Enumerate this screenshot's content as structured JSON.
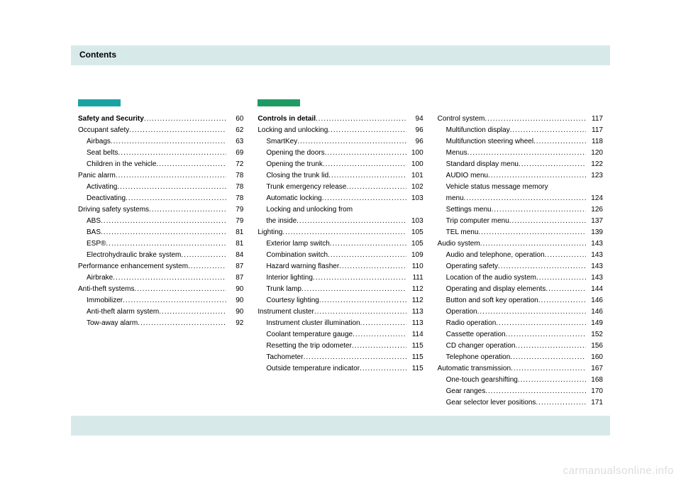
{
  "page": {
    "title": "Contents",
    "watermark": "carmanualsonline.info",
    "header_bg": "#d8e9ea",
    "footer_bg": "#d8e9ea",
    "text_color": "#000000",
    "accent_colors": [
      "#1aa3a3",
      "#1e9b63"
    ]
  },
  "columns": [
    {
      "accent": "#1aa3a3",
      "entries": [
        {
          "label": "Safety and Security",
          "page": "60",
          "bold": true,
          "indent": false
        },
        {
          "label": "Occupant safety",
          "page": "62",
          "bold": false,
          "indent": false
        },
        {
          "label": "Airbags",
          "page": "63",
          "bold": false,
          "indent": true
        },
        {
          "label": "Seat belts",
          "page": "69",
          "bold": false,
          "indent": true
        },
        {
          "label": "Children in the vehicle",
          "page": "72",
          "bold": false,
          "indent": true
        },
        {
          "label": "Panic alarm",
          "page": "78",
          "bold": false,
          "indent": false
        },
        {
          "label": "Activating",
          "page": "78",
          "bold": false,
          "indent": true
        },
        {
          "label": "Deactivating",
          "page": "78",
          "bold": false,
          "indent": true
        },
        {
          "label": "Driving safety systems",
          "page": "79",
          "bold": false,
          "indent": false
        },
        {
          "label": "ABS",
          "page": "79",
          "bold": false,
          "indent": true
        },
        {
          "label": "BAS",
          "page": "81",
          "bold": false,
          "indent": true
        },
        {
          "label": "ESP®",
          "page": "81",
          "bold": false,
          "indent": true
        },
        {
          "label": "Electrohydraulic brake system",
          "page": "84",
          "bold": false,
          "indent": true
        },
        {
          "label": "Performance enhancement system",
          "page": "87",
          "bold": false,
          "indent": false
        },
        {
          "label": "Airbrake",
          "page": "87",
          "bold": false,
          "indent": true
        },
        {
          "label": "Anti-theft systems",
          "page": "90",
          "bold": false,
          "indent": false
        },
        {
          "label": "Immobilizer",
          "page": "90",
          "bold": false,
          "indent": true
        },
        {
          "label": "Anti-theft alarm system",
          "page": "90",
          "bold": false,
          "indent": true
        },
        {
          "label": "Tow-away alarm",
          "page": "92",
          "bold": false,
          "indent": true
        }
      ]
    },
    {
      "accent": "#1e9b63",
      "entries": [
        {
          "label": "Controls in detail",
          "page": "94",
          "bold": true,
          "indent": false
        },
        {
          "label": "Locking and unlocking",
          "page": "96",
          "bold": false,
          "indent": false
        },
        {
          "label": "SmartKey",
          "page": "96",
          "bold": false,
          "indent": true
        },
        {
          "label": "Opening the doors",
          "page": "100",
          "bold": false,
          "indent": true
        },
        {
          "label": "Opening the trunk",
          "page": "100",
          "bold": false,
          "indent": true
        },
        {
          "label": "Closing the trunk lid",
          "page": "101",
          "bold": false,
          "indent": true
        },
        {
          "label": "Trunk emergency release",
          "page": "102",
          "bold": false,
          "indent": true
        },
        {
          "label": "Automatic locking",
          "page": "103",
          "bold": false,
          "indent": true
        },
        {
          "label": "Locking and unlocking from",
          "page": "",
          "bold": false,
          "indent": true,
          "nodots": true
        },
        {
          "label": "the inside",
          "page": "103",
          "bold": false,
          "indent": true
        },
        {
          "label": "Lighting",
          "page": "105",
          "bold": false,
          "indent": false
        },
        {
          "label": "Exterior lamp switch",
          "page": "105",
          "bold": false,
          "indent": true
        },
        {
          "label": "Combination switch",
          "page": "109",
          "bold": false,
          "indent": true
        },
        {
          "label": "Hazard warning flasher",
          "page": "110",
          "bold": false,
          "indent": true
        },
        {
          "label": "Interior lighting",
          "page": "111",
          "bold": false,
          "indent": true
        },
        {
          "label": "Trunk lamp",
          "page": "112",
          "bold": false,
          "indent": true
        },
        {
          "label": "Courtesy lighting",
          "page": "112",
          "bold": false,
          "indent": true
        },
        {
          "label": "Instrument cluster",
          "page": "113",
          "bold": false,
          "indent": false
        },
        {
          "label": "Instrument cluster illumination",
          "page": "113",
          "bold": false,
          "indent": true
        },
        {
          "label": "Coolant temperature gauge",
          "page": "114",
          "bold": false,
          "indent": true
        },
        {
          "label": "Resetting the trip odometer",
          "page": "115",
          "bold": false,
          "indent": true
        },
        {
          "label": "Tachometer",
          "page": "115",
          "bold": false,
          "indent": true
        },
        {
          "label": "Outside temperature indicator",
          "page": "115",
          "bold": false,
          "indent": true
        }
      ]
    },
    {
      "accent": null,
      "entries": [
        {
          "label": "Control system",
          "page": "117",
          "bold": false,
          "indent": false
        },
        {
          "label": "Multifunction display",
          "page": "117",
          "bold": false,
          "indent": true
        },
        {
          "label": "Multifunction steering wheel",
          "page": "118",
          "bold": false,
          "indent": true
        },
        {
          "label": "Menus",
          "page": "120",
          "bold": false,
          "indent": true
        },
        {
          "label": "Standard display menu",
          "page": "122",
          "bold": false,
          "indent": true
        },
        {
          "label": "AUDIO menu",
          "page": "123",
          "bold": false,
          "indent": true
        },
        {
          "label": "Vehicle status message memory",
          "page": "",
          "bold": false,
          "indent": true,
          "nodots": true
        },
        {
          "label": "menu",
          "page": "124",
          "bold": false,
          "indent": true
        },
        {
          "label": "Settings menu",
          "page": "126",
          "bold": false,
          "indent": true
        },
        {
          "label": "Trip computer menu",
          "page": "137",
          "bold": false,
          "indent": true
        },
        {
          "label": "TEL menu",
          "page": "139",
          "bold": false,
          "indent": true
        },
        {
          "label": "Audio system",
          "page": "143",
          "bold": false,
          "indent": false
        },
        {
          "label": "Audio and telephone, operation",
          "page": "143",
          "bold": false,
          "indent": true
        },
        {
          "label": "Operating safety",
          "page": "143",
          "bold": false,
          "indent": true
        },
        {
          "label": "Location of the audio system",
          "page": "143",
          "bold": false,
          "indent": true
        },
        {
          "label": "Operating and display elements",
          "page": "144",
          "bold": false,
          "indent": true
        },
        {
          "label": "Button and soft key operation",
          "page": "146",
          "bold": false,
          "indent": true
        },
        {
          "label": "Operation",
          "page": "146",
          "bold": false,
          "indent": true
        },
        {
          "label": "Radio operation",
          "page": "149",
          "bold": false,
          "indent": true
        },
        {
          "label": "Cassette operation",
          "page": "152",
          "bold": false,
          "indent": true
        },
        {
          "label": "CD changer operation",
          "page": "156",
          "bold": false,
          "indent": true
        },
        {
          "label": "Telephone operation",
          "page": "160",
          "bold": false,
          "indent": true
        },
        {
          "label": "Automatic transmission",
          "page": "167",
          "bold": false,
          "indent": false
        },
        {
          "label": "One-touch gearshifting",
          "page": "168",
          "bold": false,
          "indent": true
        },
        {
          "label": "Gear ranges",
          "page": "170",
          "bold": false,
          "indent": true
        },
        {
          "label": "Gear selector lever positions",
          "page": "171",
          "bold": false,
          "indent": true
        }
      ]
    }
  ]
}
